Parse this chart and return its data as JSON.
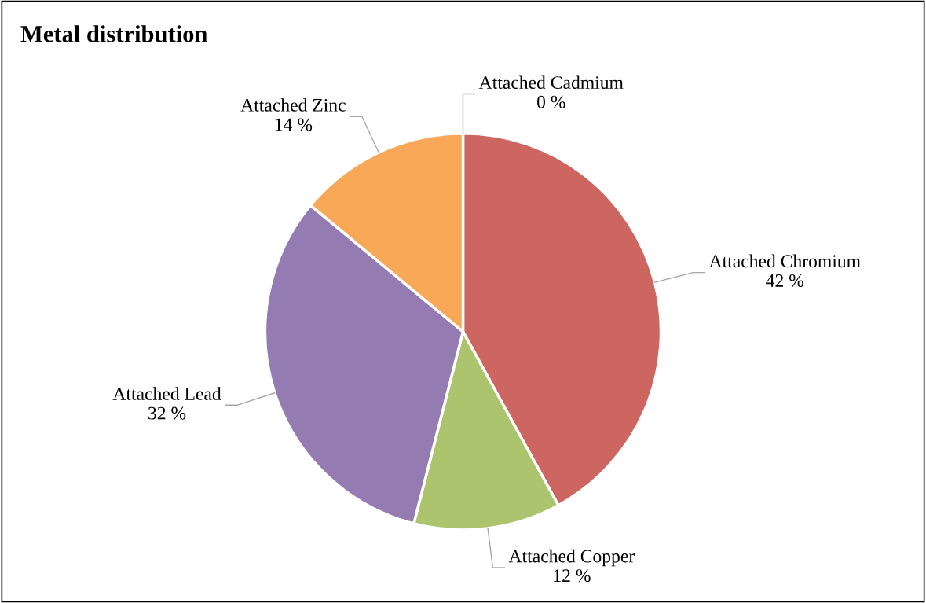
{
  "chart_data": {
    "type": "pie",
    "title": "Metal distribution",
    "categories": [
      "Attached Cadmium",
      "Attached Chromium",
      "Attached Copper",
      "Attached Lead",
      "Attached Zinc"
    ],
    "values": [
      0,
      42,
      12,
      32,
      14
    ],
    "colors": [
      "#4f81bd",
      "#cd6660",
      "#abc46d",
      "#947bb1",
      "#f9a857"
    ],
    "value_labels": [
      "0 %",
      "42 %",
      "12 %",
      "32 %",
      "14 %"
    ],
    "legend": false
  }
}
